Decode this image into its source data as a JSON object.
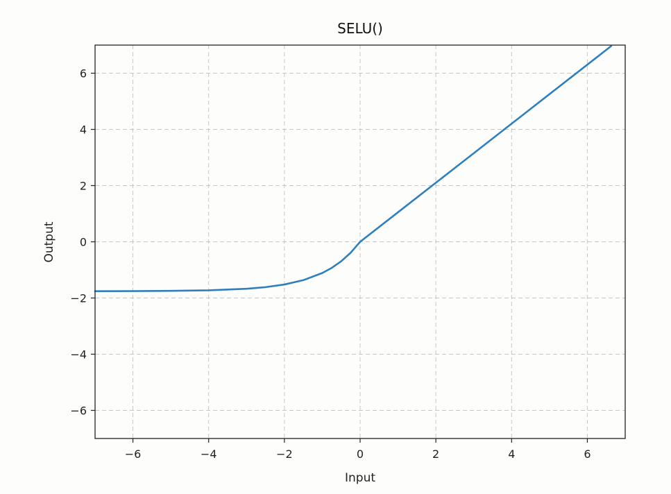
{
  "chart_data": {
    "type": "line",
    "title": "SELU()",
    "xlabel": "Input",
    "ylabel": "Output",
    "xlim": [
      -7,
      7
    ],
    "ylim": [
      -7,
      7
    ],
    "xticks": [
      -6,
      -4,
      -2,
      0,
      2,
      4,
      6
    ],
    "yticks": [
      -6,
      -4,
      -2,
      0,
      2,
      4,
      6
    ],
    "xtick_labels": [
      "−6",
      "−4",
      "−2",
      "0",
      "2",
      "4",
      "6"
    ],
    "ytick_labels": [
      "−6",
      "−4",
      "−2",
      "0",
      "2",
      "4",
      "6"
    ],
    "grid": true,
    "grid_style": "dashed",
    "series": [
      {
        "color": "#2e7fbd",
        "x": [
          -7,
          -6,
          -5,
          -4,
          -3,
          -2.5,
          -2,
          -1.5,
          -1,
          -0.75,
          -0.5,
          -0.25,
          0,
          1,
          2,
          3,
          4,
          5,
          6,
          6.63
        ],
        "y": [
          -1.757,
          -1.754,
          -1.746,
          -1.726,
          -1.671,
          -1.614,
          -1.52,
          -1.365,
          -1.111,
          -0.929,
          -0.692,
          -0.389,
          0,
          1.051,
          2.101,
          3.152,
          4.203,
          5.254,
          6.304,
          6.966
        ]
      }
    ]
  }
}
